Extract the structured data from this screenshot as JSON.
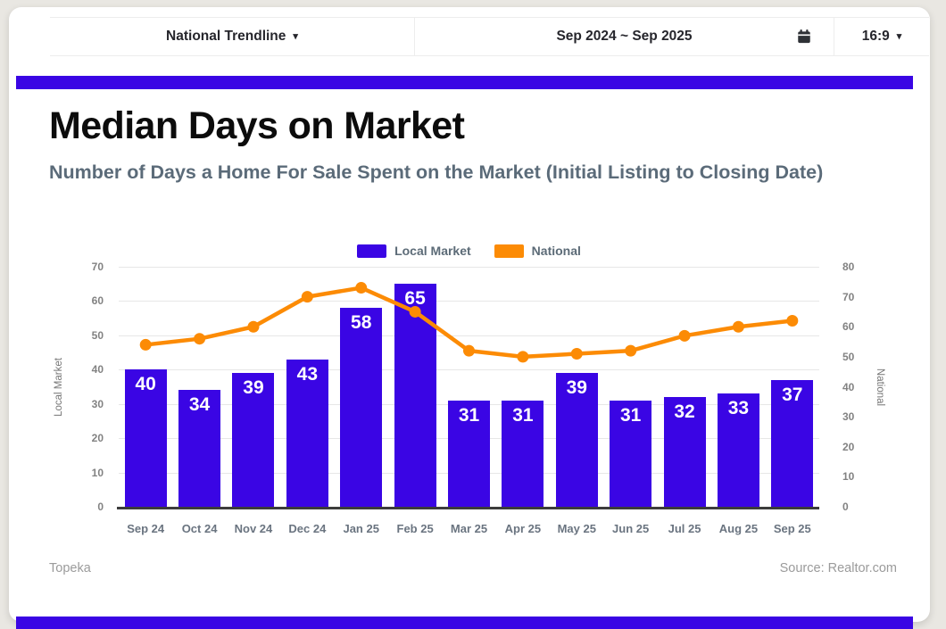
{
  "header": {
    "trendline": {
      "label": "National Trendline"
    },
    "date_range": {
      "label": "Sep 2024 ~ Sep 2025"
    },
    "aspect_ratio": {
      "label": "16:9"
    }
  },
  "icons": {
    "caret_down": "▾",
    "calendar": "calendar-icon"
  },
  "title": "Median Days on Market",
  "subtitle": "Number of Days a Home For Sale Spent on the Market (Initial Listing to Closing Date)",
  "footer": {
    "location": "Topeka",
    "source": "Source: Realtor.com"
  },
  "colors": {
    "accent": "#3a05e4",
    "national_orange": "#fc8b05",
    "subtitle_gray": "#5b6b79"
  },
  "chart_data": {
    "type": "bar",
    "subtype": "combo-bar-line",
    "title": "Median Days on Market",
    "categories": [
      "Sep 24",
      "Oct 24",
      "Nov 24",
      "Dec 24",
      "Jan 25",
      "Feb 25",
      "Mar 25",
      "Apr 25",
      "May 25",
      "Jun 25",
      "Jul 25",
      "Aug 25",
      "Sep 25"
    ],
    "series": [
      {
        "name": "Local Market",
        "type": "bar",
        "axis": "left",
        "color": "#3a05e4",
        "values": [
          40,
          34,
          39,
          43,
          58,
          65,
          31,
          31,
          39,
          31,
          32,
          33,
          37
        ]
      },
      {
        "name": "National",
        "type": "line",
        "axis": "right",
        "color": "#fc8b05",
        "values": [
          54,
          56,
          60,
          70,
          73,
          65,
          52,
          50,
          51,
          52,
          57,
          60,
          62
        ]
      }
    ],
    "left_axis": {
      "title": "Local Market",
      "min": 0,
      "max": 70,
      "step": 10
    },
    "right_axis": {
      "title": "National",
      "min": 0,
      "max": 80,
      "step": 10
    },
    "grid": "horizontal",
    "legend_position": "top-center",
    "value_labels": "inside-bar-top"
  }
}
